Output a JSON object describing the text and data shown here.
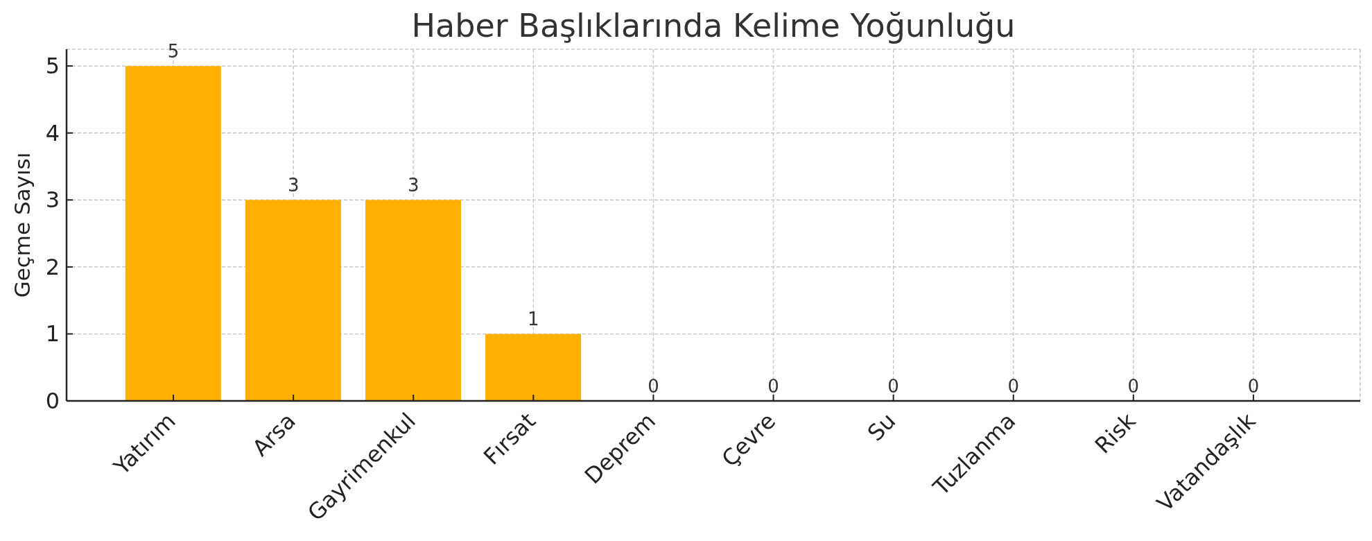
{
  "chart_data": {
    "type": "bar",
    "title": "Haber Başlıklarında Kelime Yoğunluğu",
    "ylabel": "Geçme Sayısı",
    "categories": [
      "Yatırım",
      "Arsa",
      "Gayrimenkul",
      "Fırsat",
      "Deprem",
      "Çevre",
      "Su",
      "Tuzlanma",
      "Risk",
      "Vatandaşlık"
    ],
    "values": [
      5,
      3,
      3,
      1,
      0,
      0,
      0,
      0,
      0,
      0
    ],
    "color": "#ffb000",
    "ylim": [
      0,
      5.25
    ],
    "yticks": [
      0,
      1,
      2,
      3,
      4,
      5
    ],
    "grid": true,
    "data_labels": true
  }
}
